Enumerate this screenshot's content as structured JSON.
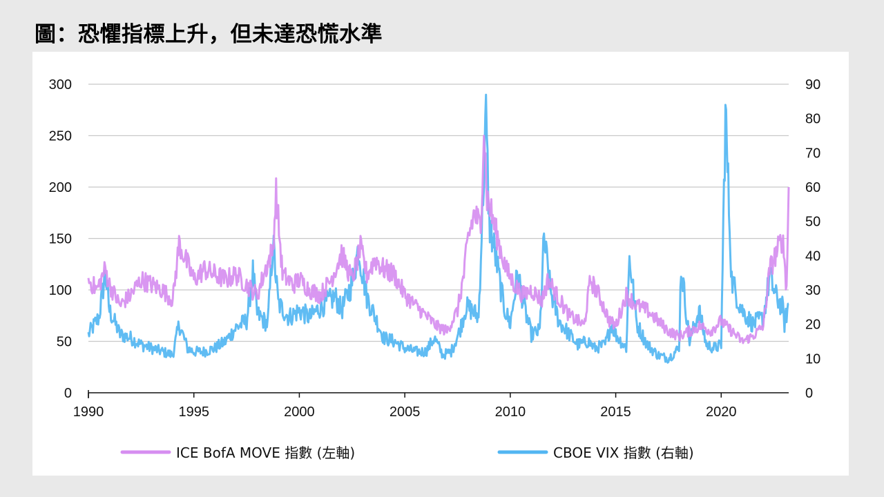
{
  "title": "圖：恐懼指標上升，但未達恐慌水準",
  "colors": {
    "move": "#d68ef0",
    "vix": "#52b6f2",
    "grid": "#c8c8c8",
    "axis": "#111111"
  },
  "chart_data": {
    "type": "line",
    "title": "圖：恐懼指標上升，但未達恐慌水準",
    "xlabel": "",
    "ylabel": "",
    "xlim": [
      1990,
      2023.2
    ],
    "x_ticks": [
      1990,
      1995,
      2000,
      2005,
      2010,
      2015,
      2020
    ],
    "y_left_ticks": [
      0,
      50,
      100,
      150,
      200,
      250,
      300
    ],
    "y_right_ticks": [
      0,
      10,
      20,
      30,
      40,
      50,
      60,
      70,
      80,
      90
    ],
    "ylim_left": [
      0,
      300
    ],
    "ylim_right": [
      0,
      90
    ],
    "grid": true,
    "legend_position": "bottom",
    "series": [
      {
        "name": "ICE BofA MOVE 指數 (左軸)",
        "axis": "left",
        "color": "#d68ef0",
        "x": [
          1990.0,
          1990.4,
          1990.8,
          1991.0,
          1991.5,
          1992.0,
          1992.5,
          1993.0,
          1993.5,
          1994.0,
          1994.3,
          1994.7,
          1995.0,
          1995.5,
          1996.0,
          1996.5,
          1997.0,
          1997.5,
          1998.0,
          1998.4,
          1998.75,
          1998.9,
          1999.2,
          1999.7,
          2000.0,
          2000.5,
          2001.0,
          2001.5,
          2002.0,
          2002.5,
          2002.9,
          2003.2,
          2003.6,
          2004.0,
          2004.5,
          2005.0,
          2005.5,
          2006.0,
          2006.5,
          2007.0,
          2007.5,
          2007.8,
          2008.0,
          2008.3,
          2008.6,
          2008.75,
          2008.9,
          2009.1,
          2009.4,
          2009.8,
          2010.2,
          2010.6,
          2011.0,
          2011.5,
          2011.8,
          2012.2,
          2012.8,
          2013.2,
          2013.5,
          2013.8,
          2014.2,
          2014.7,
          2015.0,
          2015.5,
          2016.0,
          2016.5,
          2017.0,
          2017.5,
          2018.0,
          2018.5,
          2019.0,
          2019.5,
          2020.0,
          2020.2,
          2020.5,
          2021.0,
          2021.5,
          2022.0,
          2022.3,
          2022.6,
          2022.9,
          2023.0,
          2023.1,
          2023.2
        ],
        "values": [
          110,
          100,
          120,
          105,
          85,
          95,
          110,
          105,
          100,
          90,
          145,
          125,
          110,
          120,
          115,
          110,
          115,
          105,
          95,
          120,
          140,
          195,
          115,
          105,
          110,
          100,
          95,
          110,
          135,
          110,
          140,
          115,
          130,
          120,
          115,
          95,
          85,
          75,
          65,
          60,
          80,
          115,
          150,
          175,
          160,
          260,
          190,
          175,
          150,
          120,
          105,
          95,
          100,
          90,
          110,
          95,
          75,
          70,
          65,
          110,
          95,
          70,
          65,
          95,
          85,
          80,
          70,
          60,
          55,
          60,
          65,
          60,
          70,
          65,
          60,
          50,
          55,
          65,
          120,
          135,
          150,
          130,
          100,
          200
        ]
      },
      {
        "name": "CBOE VIX 指數 (右軸)",
        "axis": "right",
        "color": "#52b6f2",
        "x": [
          1990.0,
          1990.5,
          1990.8,
          1991.0,
          1991.5,
          1992.0,
          1992.5,
          1993.0,
          1993.5,
          1994.0,
          1994.3,
          1994.7,
          1995.0,
          1995.5,
          1996.0,
          1996.5,
          1997.0,
          1997.5,
          1997.8,
          1998.0,
          1998.5,
          1998.75,
          1999.0,
          1999.5,
          2000.0,
          2000.5,
          2001.0,
          2001.7,
          2002.0,
          2002.5,
          2002.8,
          2003.2,
          2003.6,
          2004.0,
          2004.5,
          2005.0,
          2005.5,
          2006.0,
          2006.4,
          2006.8,
          2007.2,
          2007.6,
          2007.9,
          2008.2,
          2008.5,
          2008.75,
          2008.85,
          2009.0,
          2009.3,
          2009.7,
          2010.0,
          2010.35,
          2010.7,
          2011.0,
          2011.4,
          2011.6,
          2011.9,
          2012.3,
          2012.8,
          2013.2,
          2013.7,
          2014.0,
          2014.5,
          2014.8,
          2015.0,
          2015.5,
          2015.65,
          2016.0,
          2016.5,
          2017.0,
          2017.5,
          2018.0,
          2018.1,
          2018.5,
          2018.95,
          2019.3,
          2019.7,
          2020.0,
          2020.2,
          2020.5,
          2020.8,
          2021.0,
          2021.5,
          2022.0,
          2022.3,
          2022.6,
          2022.9,
          2023.0,
          2023.2
        ],
        "values": [
          17,
          22,
          35,
          24,
          17,
          16,
          14,
          13,
          12,
          11,
          20,
          13,
          12,
          12,
          13,
          15,
          19,
          21,
          35,
          23,
          20,
          44,
          26,
          22,
          24,
          22,
          25,
          28,
          24,
          32,
          42,
          28,
          22,
          16,
          15,
          13,
          12,
          12,
          16,
          11,
          12,
          18,
          25,
          24,
          22,
          65,
          80,
          50,
          40,
          25,
          20,
          35,
          24,
          17,
          18,
          45,
          30,
          21,
          17,
          14,
          15,
          13,
          14,
          20,
          17,
          13,
          40,
          20,
          14,
          11,
          10,
          13,
          37,
          15,
          24,
          14,
          13,
          14,
          82,
          33,
          27,
          24,
          20,
          22,
          34,
          28,
          25,
          20,
          26
        ]
      }
    ]
  },
  "legend": {
    "move_label": "ICE BofA MOVE 指數 (左軸)",
    "vix_label": "CBOE VIX 指數 (右軸)"
  }
}
